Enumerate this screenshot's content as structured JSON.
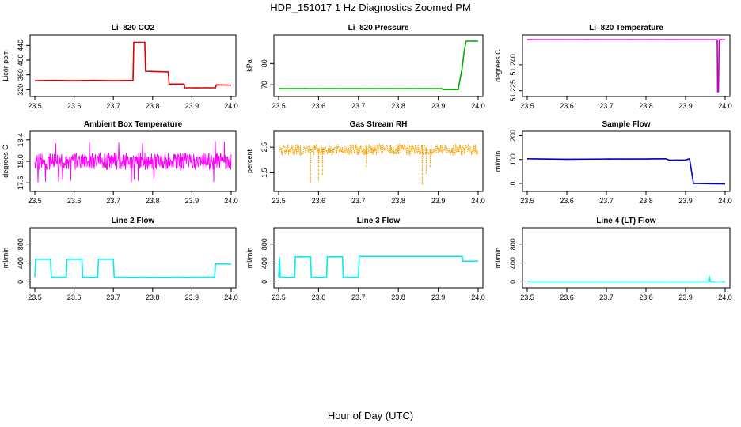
{
  "figure": {
    "title": "HDP_151017  1 Hz Diagnostics Zoomed PM",
    "xlabel": "Hour of Day (UTC)"
  },
  "chart_data": [
    {
      "type": "line",
      "title": "Li–820 CO2",
      "ylabel": "Licor ppm",
      "color": "#e00000",
      "xlim": [
        23.5,
        24.0
      ],
      "ylim": [
        310,
        460
      ],
      "x_ticks": [
        "23.5",
        "23.6",
        "23.7",
        "23.8",
        "23.9",
        "24.0"
      ],
      "y_ticks": [
        {
          "v": 320,
          "label": "320"
        },
        {
          "v": 360,
          "label": "360"
        },
        {
          "v": 400,
          "label": "400"
        },
        {
          "v": 440,
          "label": "440"
        }
      ],
      "series": [
        {
          "x": [
            23.5,
            23.55,
            23.6,
            23.65,
            23.7,
            23.75,
            23.752,
            23.78,
            23.782,
            23.84,
            23.842,
            23.88,
            23.882,
            23.92,
            23.96,
            23.962,
            24.0
          ],
          "y": [
            344,
            345,
            344,
            345,
            344,
            345,
            448,
            448,
            370,
            368,
            335,
            335,
            325,
            325,
            325,
            333,
            332
          ]
        }
      ]
    },
    {
      "type": "line",
      "title": "Li–820 Pressure",
      "ylabel": "kPa",
      "color": "#00b000",
      "xlim": [
        23.5,
        24.0
      ],
      "ylim": [
        66,
        92
      ],
      "x_ticks": [
        "23.5",
        "23.6",
        "23.7",
        "23.8",
        "23.9",
        "24.0"
      ],
      "y_ticks": [
        {
          "v": 70,
          "label": "70"
        },
        {
          "v": 80,
          "label": "80"
        }
      ],
      "series": [
        {
          "x": [
            23.5,
            23.6,
            23.7,
            23.8,
            23.91,
            23.912,
            23.95,
            23.96,
            23.965,
            23.97,
            24.0
          ],
          "y": [
            68.2,
            68.2,
            68.2,
            68.2,
            68.2,
            67.8,
            67.8,
            78,
            86,
            90.5,
            90.5
          ]
        }
      ]
    },
    {
      "type": "line",
      "title": "Li–820 Temperature",
      "ylabel": "degrees C",
      "color": "#c000c0",
      "xlim": [
        23.5,
        24.0
      ],
      "ylim": [
        51.2235,
        51.2555
      ],
      "x_ticks": [
        "23.5",
        "23.6",
        "23.7",
        "23.8",
        "23.9",
        "24.0"
      ],
      "y_ticks": [
        {
          "v": 51.225,
          "label": "51.225"
        },
        {
          "v": 51.24,
          "label": "51.240"
        }
      ],
      "series": [
        {
          "x": [
            23.5,
            23.8,
            23.98,
            23.981,
            23.983,
            23.985,
            24.0
          ],
          "y": [
            51.2545,
            51.2545,
            51.2545,
            51.2245,
            51.2245,
            51.2545,
            51.2545
          ]
        }
      ]
    },
    {
      "type": "line",
      "title": "Ambient Box Temperature",
      "ylabel": "degrees C",
      "color": "#ff00ff",
      "xlim": [
        23.5,
        24.0
      ],
      "ylim": [
        17.5,
        18.5
      ],
      "x_ticks": [
        "23.5",
        "23.6",
        "23.7",
        "23.8",
        "23.9",
        "24.0"
      ],
      "y_ticks": [
        {
          "v": 17.6,
          "label": "17.6"
        },
        {
          "v": 18.0,
          "label": "18.0"
        },
        {
          "v": 18.4,
          "label": "18.4"
        }
      ],
      "noise_band": {
        "center": 18.0,
        "amplitude": 0.16,
        "spikes_low": 17.6,
        "spikes_high": 18.38
      }
    },
    {
      "type": "line",
      "title": "Gas Stream RH",
      "ylabel": "percent",
      "color": "#f0a000",
      "xlim": [
        23.5,
        24.0
      ],
      "ylim": [
        0.9,
        3.0
      ],
      "x_ticks": [
        "23.5",
        "23.6",
        "23.7",
        "23.8",
        "23.9",
        "24.0"
      ],
      "y_ticks": [
        {
          "v": 1.5,
          "label": "1.5"
        },
        {
          "v": 2.5,
          "label": "2.5"
        }
      ],
      "noise_band": {
        "center": 2.4,
        "amplitude": 0.22
      },
      "dips": [
        {
          "x": 23.58,
          "y": 1.1
        },
        {
          "x": 23.6,
          "y": 1.2
        },
        {
          "x": 23.61,
          "y": 1.4
        },
        {
          "x": 23.72,
          "y": 1.7
        },
        {
          "x": 23.86,
          "y": 1.05
        },
        {
          "x": 23.87,
          "y": 1.45
        },
        {
          "x": 23.88,
          "y": 1.7
        }
      ]
    },
    {
      "type": "line",
      "title": "Sample Flow",
      "ylabel": "ml/min",
      "color": "#0000d0",
      "xlim": [
        23.5,
        24.0
      ],
      "ylim": [
        -20,
        205
      ],
      "x_ticks": [
        "23.5",
        "23.6",
        "23.7",
        "23.8",
        "23.9",
        "24.0"
      ],
      "y_ticks": [
        {
          "v": 0,
          "label": "0"
        },
        {
          "v": 100,
          "label": "100"
        },
        {
          "v": 200,
          "label": "200"
        }
      ],
      "series": [
        {
          "x": [
            23.5,
            23.6,
            23.7,
            23.79,
            23.85,
            23.86,
            23.9,
            23.91,
            23.92,
            23.96,
            24.0
          ],
          "y": [
            103,
            101,
            102,
            102,
            103,
            97,
            98,
            103,
            0,
            -1,
            -2
          ]
        }
      ]
    },
    {
      "type": "line",
      "title": "Line 2 Flow",
      "ylabel": "ml/min",
      "color": "#00f0f0",
      "xlim": [
        23.5,
        24.0
      ],
      "ylim": [
        -60,
        1080
      ],
      "x_ticks": [
        "23.5",
        "23.6",
        "23.7",
        "23.8",
        "23.9",
        "24.0"
      ],
      "y_ticks": [
        {
          "v": 0,
          "label": "0"
        },
        {
          "v": 400,
          "label": "400"
        },
        {
          "v": 800,
          "label": "800"
        }
      ],
      "series": [
        {
          "x": [
            23.5,
            23.502,
            23.54,
            23.542,
            23.58,
            23.582,
            23.62,
            23.622,
            23.66,
            23.662,
            23.7,
            23.702,
            23.958,
            23.96,
            24.0
          ],
          "y": [
            100,
            480,
            480,
            100,
            100,
            480,
            480,
            100,
            100,
            480,
            480,
            100,
            100,
            380,
            380
          ]
        }
      ]
    },
    {
      "type": "line",
      "title": "Line 3 Flow",
      "ylabel": "ml/min",
      "color": "#00f0f0",
      "xlim": [
        23.5,
        24.0
      ],
      "ylim": [
        -60,
        1080
      ],
      "x_ticks": [
        "23.5",
        "23.6",
        "23.7",
        "23.8",
        "23.9",
        "24.0"
      ],
      "y_ticks": [
        {
          "v": 0,
          "label": "0"
        },
        {
          "v": 400,
          "label": "400"
        },
        {
          "v": 800,
          "label": "800"
        }
      ],
      "series": [
        {
          "x": [
            23.5,
            23.502,
            23.504,
            23.54,
            23.542,
            23.58,
            23.582,
            23.62,
            23.622,
            23.66,
            23.662,
            23.7,
            23.702,
            23.96,
            23.962,
            24.0
          ],
          "y": [
            100,
            530,
            100,
            100,
            530,
            530,
            100,
            100,
            530,
            530,
            100,
            100,
            540,
            540,
            440,
            440
          ]
        }
      ]
    },
    {
      "type": "line",
      "title": "Line 4 (LT) Flow",
      "ylabel": "ml/min",
      "color": "#00f0f0",
      "xlim": [
        23.5,
        24.0
      ],
      "ylim": [
        -60,
        1080
      ],
      "x_ticks": [
        "23.5",
        "23.6",
        "23.7",
        "23.8",
        "23.9",
        "24.0"
      ],
      "y_ticks": [
        {
          "v": 0,
          "label": "0"
        },
        {
          "v": 400,
          "label": "400"
        },
        {
          "v": 800,
          "label": "800"
        }
      ],
      "series": [
        {
          "x": [
            23.5,
            23.7,
            23.9,
            23.958,
            23.96,
            23.962,
            23.964,
            24.0
          ],
          "y": [
            0,
            0,
            0,
            0,
            120,
            20,
            0,
            0
          ]
        }
      ]
    }
  ]
}
